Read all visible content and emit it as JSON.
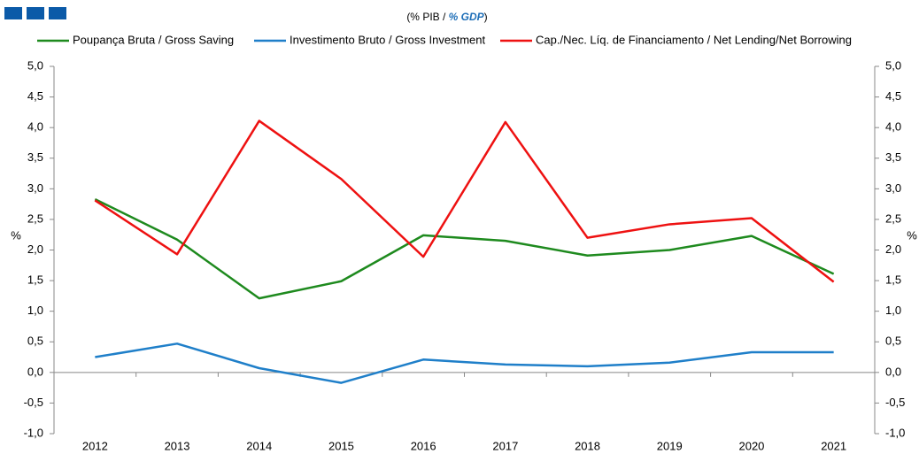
{
  "chart_data": {
    "type": "line",
    "subtitle": [
      "(% PIB / ",
      "% GDP",
      ")"
    ],
    "ylabel": "%",
    "y2label": "%",
    "categories": [
      "2012",
      "2013",
      "2014",
      "2015",
      "2016",
      "2017",
      "2018",
      "2019",
      "2020",
      "2021"
    ],
    "series": [
      {
        "name": "Poupança Bruta / Gross Saving",
        "color": "#1e8a1e",
        "values": [
          2.83,
          2.17,
          1.21,
          1.49,
          2.24,
          2.15,
          1.91,
          2.0,
          2.23,
          1.61
        ]
      },
      {
        "name": "Investimento Bruto / Gross Investment",
        "color": "#1f7fc9",
        "values": [
          0.25,
          0.47,
          0.07,
          -0.17,
          0.21,
          0.13,
          0.1,
          0.16,
          0.33,
          0.33
        ]
      },
      {
        "name": "Cap./Nec. Líq. de Financiamento / Net Lending/Net Borrowing",
        "color": "#ee1111",
        "values": [
          2.81,
          1.93,
          4.11,
          3.16,
          1.89,
          4.09,
          2.2,
          2.42,
          2.52,
          1.48
        ]
      }
    ],
    "ylim": [
      -1,
      5
    ],
    "yticks": [
      {
        "value": -1,
        "label": "-1,0"
      },
      {
        "value": -0.5,
        "label": "-0,5"
      },
      {
        "value": 0,
        "label": "0,0"
      },
      {
        "value": 0.5,
        "label": "0,5"
      },
      {
        "value": 1,
        "label": "1,0"
      },
      {
        "value": 1.5,
        "label": "1,5"
      },
      {
        "value": 2,
        "label": "2,0"
      },
      {
        "value": 2.5,
        "label": "2,5"
      },
      {
        "value": 3,
        "label": "3,0"
      },
      {
        "value": 3.5,
        "label": "3,5"
      },
      {
        "value": 4,
        "label": "4,0"
      },
      {
        "value": 4.5,
        "label": "4,5"
      },
      {
        "value": 5,
        "label": "5,0"
      }
    ],
    "y2lim": [
      -1,
      5
    ],
    "y2ticks": [
      {
        "value": -1,
        "label": "-1,0"
      },
      {
        "value": -0.5,
        "label": "-0,5"
      },
      {
        "value": 0,
        "label": "0,0"
      },
      {
        "value": 0.5,
        "label": "0,5"
      },
      {
        "value": 1,
        "label": "1,0"
      },
      {
        "value": 1.5,
        "label": "1,5"
      },
      {
        "value": 2,
        "label": "2,0"
      },
      {
        "value": 2.5,
        "label": "2,5"
      },
      {
        "value": 3,
        "label": "3,0"
      },
      {
        "value": 3.5,
        "label": "3,5"
      },
      {
        "value": 4,
        "label": "4,0"
      },
      {
        "value": 4.5,
        "label": "4,5"
      },
      {
        "value": 5,
        "label": "5,0"
      }
    ],
    "grid": false
  }
}
